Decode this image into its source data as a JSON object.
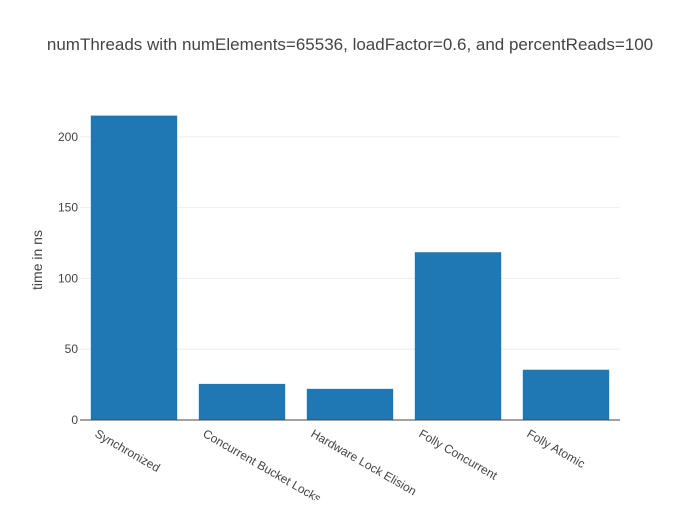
{
  "chart_data": {
    "type": "bar",
    "title": "numThreads with numElements=65536, loadFactor=0.6, and percentReads=100",
    "xlabel": "",
    "ylabel": "time in ns",
    "categories": [
      "Synchronized",
      "Concurrent Bucket Locks",
      "Hardware Lock Elision",
      "Folly Concurrent",
      "Folly Atomic"
    ],
    "values": [
      215,
      25.5,
      22,
      118.5,
      35.5
    ],
    "ylim": [
      0,
      226
    ],
    "yticks": [
      0,
      50,
      100,
      150,
      200
    ],
    "grid": true,
    "legend": "none",
    "bar_color": "#1f77b4"
  }
}
